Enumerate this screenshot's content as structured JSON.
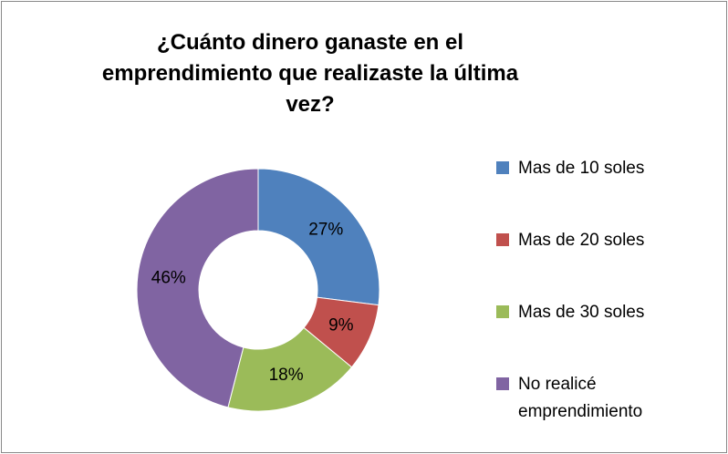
{
  "chart_data": {
    "type": "donut",
    "title": "¿Cuánto dinero ganaste en el emprendimiento que realizaste la última vez?",
    "categories": [
      "Mas de 10 soles",
      "Mas de 20 soles",
      "Mas de 30 soles",
      "No realicé emprendimiento"
    ],
    "values": [
      27,
      9,
      18,
      46
    ],
    "value_labels": [
      "27%",
      "9%",
      "18%",
      "46%"
    ],
    "colors": [
      "#4f81bd",
      "#c0504d",
      "#9bbb59",
      "#8064a2"
    ],
    "legend": "right"
  }
}
